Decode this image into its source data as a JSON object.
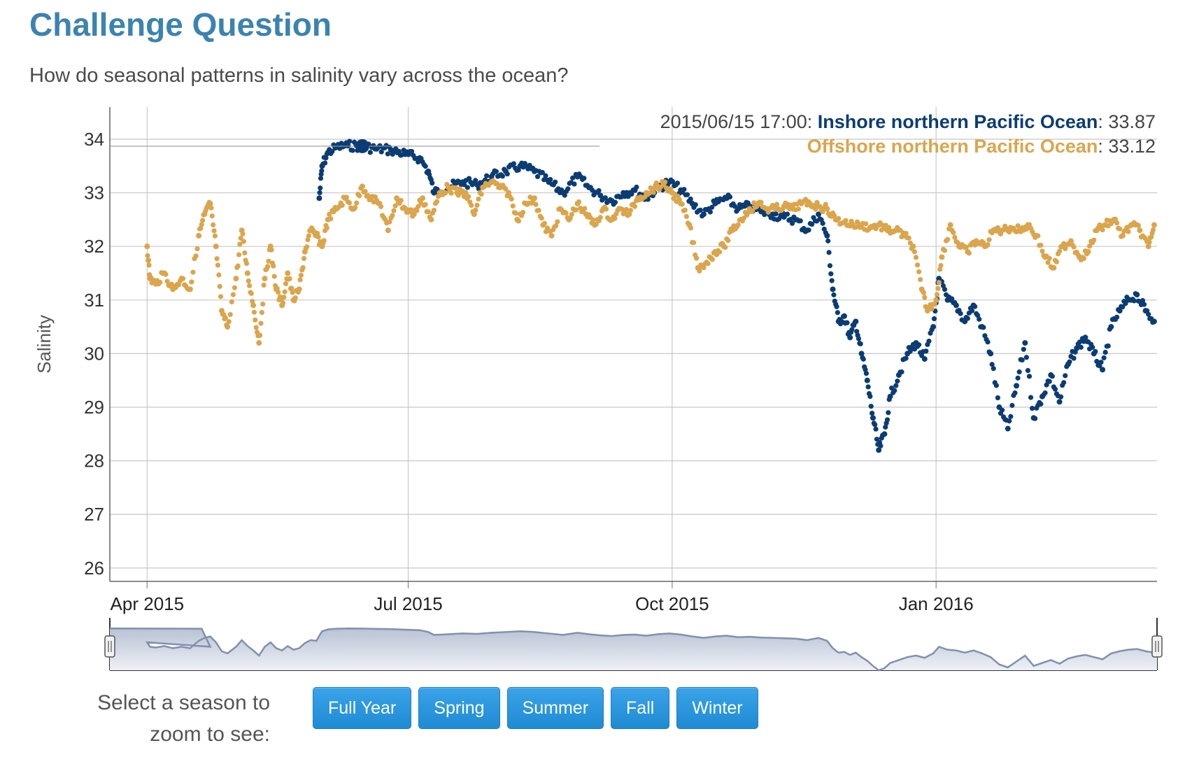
{
  "page": {
    "title": "Challenge Question",
    "subtitle": "How do seasonal patterns in salinity vary across the ocean?"
  },
  "controls": {
    "prompt_line1": "Select a season to",
    "prompt_line2": "zoom to see:",
    "buttons": [
      "Full Year",
      "Spring",
      "Summer",
      "Fall",
      "Winter"
    ]
  },
  "colors": {
    "inshore": "#0b3c74",
    "offshore": "#dba54c",
    "grid": "#c8c8c8",
    "button": "#2495dc",
    "title": "#3b83b0"
  },
  "chart_data": {
    "type": "scatter",
    "ylabel": "Salinity",
    "ylim": [
      25.75,
      34.6
    ],
    "yticks": [
      26,
      27,
      28,
      29,
      30,
      31,
      32,
      33,
      34
    ],
    "xlim": [
      "2015-03-19",
      "2016-03-18"
    ],
    "xticks": [
      {
        "date": "2015-04-01",
        "label": "Apr 2015"
      },
      {
        "date": "2015-07-01",
        "label": "Jul 2015"
      },
      {
        "date": "2015-10-01",
        "label": "Oct 2015"
      },
      {
        "date": "2016-01-01",
        "label": "Jan 2016"
      }
    ],
    "grid": true,
    "highlight": {
      "time": "2015/06/15 17:00",
      "series": [
        {
          "name": "Inshore northern Pacific Ocean",
          "value": "33.87"
        },
        {
          "name": "Offshore northern Pacific Ocean",
          "value": "33.12"
        }
      ]
    },
    "range_selector": true,
    "series": [
      {
        "name": "Inshore northern Pacific Ocean",
        "color": "#0b3c74",
        "points": [
          [
            "2015-05-31",
            32.9
          ],
          [
            "2015-06-01",
            33.5
          ],
          [
            "2015-06-03",
            33.75
          ],
          [
            "2015-06-06",
            33.85
          ],
          [
            "2015-06-10",
            33.88
          ],
          [
            "2015-06-15",
            33.87
          ],
          [
            "2015-06-20",
            33.82
          ],
          [
            "2015-06-25",
            33.8
          ],
          [
            "2015-06-30",
            33.72
          ],
          [
            "2015-07-05",
            33.65
          ],
          [
            "2015-07-08",
            33.4
          ],
          [
            "2015-07-10",
            33.0
          ],
          [
            "2015-07-15",
            33.1
          ],
          [
            "2015-07-20",
            33.2
          ],
          [
            "2015-07-25",
            33.15
          ],
          [
            "2015-07-30",
            33.3
          ],
          [
            "2015-08-04",
            33.4
          ],
          [
            "2015-08-09",
            33.5
          ],
          [
            "2015-08-14",
            33.4
          ],
          [
            "2015-08-19",
            33.2
          ],
          [
            "2015-08-24",
            33.0
          ],
          [
            "2015-08-29",
            33.3
          ],
          [
            "2015-09-02",
            33.1
          ],
          [
            "2015-09-06",
            32.95
          ],
          [
            "2015-09-10",
            32.85
          ],
          [
            "2015-09-14",
            33.0
          ],
          [
            "2015-09-18",
            33.05
          ],
          [
            "2015-09-22",
            32.9
          ],
          [
            "2015-09-26",
            33.1
          ],
          [
            "2015-09-30",
            33.2
          ],
          [
            "2015-10-04",
            33.05
          ],
          [
            "2015-10-08",
            32.8
          ],
          [
            "2015-10-12",
            32.6
          ],
          [
            "2015-10-16",
            32.8
          ],
          [
            "2015-10-20",
            32.9
          ],
          [
            "2015-10-24",
            32.7
          ],
          [
            "2015-10-28",
            32.75
          ],
          [
            "2015-11-01",
            32.65
          ],
          [
            "2015-11-05",
            32.6
          ],
          [
            "2015-11-09",
            32.55
          ],
          [
            "2015-11-13",
            32.5
          ],
          [
            "2015-11-17",
            32.3
          ],
          [
            "2015-11-21",
            32.6
          ],
          [
            "2015-11-24",
            32.2
          ],
          [
            "2015-11-26",
            31.2
          ],
          [
            "2015-11-28",
            30.6
          ],
          [
            "2015-11-30",
            30.7
          ],
          [
            "2015-12-02",
            30.3
          ],
          [
            "2015-12-04",
            30.6
          ],
          [
            "2015-12-06",
            30.0
          ],
          [
            "2015-12-08",
            29.5
          ],
          [
            "2015-12-10",
            28.8
          ],
          [
            "2015-12-12",
            28.2
          ],
          [
            "2015-12-14",
            28.5
          ],
          [
            "2015-12-16",
            29.2
          ],
          [
            "2015-12-19",
            29.6
          ],
          [
            "2015-12-22",
            30.0
          ],
          [
            "2015-12-25",
            30.2
          ],
          [
            "2015-12-28",
            29.9
          ],
          [
            "2015-12-31",
            30.5
          ],
          [
            "2016-01-02",
            31.4
          ],
          [
            "2016-01-05",
            31.0
          ],
          [
            "2016-01-08",
            30.9
          ],
          [
            "2016-01-11",
            30.6
          ],
          [
            "2016-01-14",
            30.9
          ],
          [
            "2016-01-17",
            30.5
          ],
          [
            "2016-01-20",
            30.0
          ],
          [
            "2016-01-23",
            29.0
          ],
          [
            "2016-01-26",
            28.6
          ],
          [
            "2016-01-29",
            29.4
          ],
          [
            "2016-02-01",
            30.2
          ],
          [
            "2016-02-04",
            28.8
          ],
          [
            "2016-02-07",
            29.2
          ],
          [
            "2016-02-10",
            29.6
          ],
          [
            "2016-02-13",
            29.1
          ],
          [
            "2016-02-16",
            29.8
          ],
          [
            "2016-02-19",
            30.1
          ],
          [
            "2016-02-22",
            30.3
          ],
          [
            "2016-02-25",
            30.0
          ],
          [
            "2016-02-28",
            29.7
          ],
          [
            "2016-03-02",
            30.5
          ],
          [
            "2016-03-05",
            30.8
          ],
          [
            "2016-03-08",
            31.0
          ],
          [
            "2016-03-11",
            31.1
          ],
          [
            "2016-03-14",
            30.8
          ],
          [
            "2016-03-17",
            30.6
          ]
        ]
      },
      {
        "name": "Offshore northern Pacific Ocean",
        "color": "#dba54c",
        "points": [
          [
            "2015-04-01",
            32.0
          ],
          [
            "2015-04-02",
            31.4
          ],
          [
            "2015-04-04",
            31.3
          ],
          [
            "2015-04-07",
            31.5
          ],
          [
            "2015-04-10",
            31.2
          ],
          [
            "2015-04-13",
            31.4
          ],
          [
            "2015-04-16",
            31.2
          ],
          [
            "2015-04-19",
            32.2
          ],
          [
            "2015-04-21",
            32.6
          ],
          [
            "2015-04-23",
            32.8
          ],
          [
            "2015-04-25",
            32.0
          ],
          [
            "2015-04-27",
            30.8
          ],
          [
            "2015-04-29",
            30.5
          ],
          [
            "2015-05-02",
            31.4
          ],
          [
            "2015-05-04",
            32.3
          ],
          [
            "2015-05-06",
            31.5
          ],
          [
            "2015-05-08",
            30.9
          ],
          [
            "2015-05-10",
            30.2
          ],
          [
            "2015-05-12",
            31.4
          ],
          [
            "2015-05-14",
            32.0
          ],
          [
            "2015-05-16",
            31.2
          ],
          [
            "2015-05-18",
            30.9
          ],
          [
            "2015-05-20",
            31.5
          ],
          [
            "2015-05-22",
            31.0
          ],
          [
            "2015-05-24",
            31.2
          ],
          [
            "2015-05-26",
            31.9
          ],
          [
            "2015-05-28",
            32.3
          ],
          [
            "2015-05-30",
            32.2
          ],
          [
            "2015-06-01",
            32.0
          ],
          [
            "2015-06-03",
            32.5
          ],
          [
            "2015-06-06",
            32.7
          ],
          [
            "2015-06-09",
            32.9
          ],
          [
            "2015-06-12",
            32.7
          ],
          [
            "2015-06-15",
            33.12
          ],
          [
            "2015-06-18",
            32.9
          ],
          [
            "2015-06-21",
            32.8
          ],
          [
            "2015-06-24",
            32.3
          ],
          [
            "2015-06-27",
            32.9
          ],
          [
            "2015-06-30",
            32.7
          ],
          [
            "2015-07-03",
            32.6
          ],
          [
            "2015-07-06",
            32.9
          ],
          [
            "2015-07-09",
            32.5
          ],
          [
            "2015-07-12",
            33.0
          ],
          [
            "2015-07-15",
            33.1
          ],
          [
            "2015-07-18",
            33.0
          ],
          [
            "2015-07-21",
            33.0
          ],
          [
            "2015-07-24",
            32.6
          ],
          [
            "2015-07-27",
            33.1
          ],
          [
            "2015-07-30",
            33.2
          ],
          [
            "2015-08-02",
            33.1
          ],
          [
            "2015-08-05",
            33.0
          ],
          [
            "2015-08-08",
            32.5
          ],
          [
            "2015-08-11",
            32.8
          ],
          [
            "2015-08-14",
            32.9
          ],
          [
            "2015-08-17",
            32.4
          ],
          [
            "2015-08-20",
            32.2
          ],
          [
            "2015-08-23",
            32.7
          ],
          [
            "2015-08-26",
            32.5
          ],
          [
            "2015-08-29",
            32.8
          ],
          [
            "2015-09-01",
            32.6
          ],
          [
            "2015-09-04",
            32.4
          ],
          [
            "2015-09-07",
            32.7
          ],
          [
            "2015-09-10",
            32.5
          ],
          [
            "2015-09-13",
            32.7
          ],
          [
            "2015-09-16",
            32.6
          ],
          [
            "2015-09-19",
            32.9
          ],
          [
            "2015-09-22",
            33.0
          ],
          [
            "2015-09-25",
            33.1
          ],
          [
            "2015-09-28",
            33.15
          ],
          [
            "2015-10-01",
            33.0
          ],
          [
            "2015-10-04",
            32.8
          ],
          [
            "2015-10-07",
            32.4
          ],
          [
            "2015-10-10",
            31.6
          ],
          [
            "2015-10-13",
            31.7
          ],
          [
            "2015-10-16",
            31.9
          ],
          [
            "2015-10-19",
            32.0
          ],
          [
            "2015-10-22",
            32.3
          ],
          [
            "2015-10-25",
            32.5
          ],
          [
            "2015-10-28",
            32.7
          ],
          [
            "2015-10-31",
            32.8
          ],
          [
            "2015-11-03",
            32.7
          ],
          [
            "2015-11-06",
            32.7
          ],
          [
            "2015-11-09",
            32.75
          ],
          [
            "2015-11-12",
            32.7
          ],
          [
            "2015-11-15",
            32.8
          ],
          [
            "2015-11-18",
            32.8
          ],
          [
            "2015-11-21",
            32.75
          ],
          [
            "2015-11-24",
            32.7
          ],
          [
            "2015-11-27",
            32.5
          ],
          [
            "2015-11-30",
            32.45
          ],
          [
            "2015-12-03",
            32.4
          ],
          [
            "2015-12-06",
            32.4
          ],
          [
            "2015-12-09",
            32.35
          ],
          [
            "2015-12-12",
            32.4
          ],
          [
            "2015-12-15",
            32.3
          ],
          [
            "2015-12-18",
            32.3
          ],
          [
            "2015-12-21",
            32.2
          ],
          [
            "2015-12-24",
            32.0
          ],
          [
            "2015-12-27",
            31.2
          ],
          [
            "2015-12-29",
            30.8
          ],
          [
            "2016-01-01",
            31.0
          ],
          [
            "2016-01-03",
            31.8
          ],
          [
            "2016-01-06",
            32.4
          ],
          [
            "2016-01-09",
            32.0
          ],
          [
            "2016-01-12",
            31.9
          ],
          [
            "2016-01-15",
            32.1
          ],
          [
            "2016-01-18",
            32.0
          ],
          [
            "2016-01-21",
            32.3
          ],
          [
            "2016-01-24",
            32.3
          ],
          [
            "2016-01-27",
            32.35
          ],
          [
            "2016-01-30",
            32.3
          ],
          [
            "2016-02-02",
            32.4
          ],
          [
            "2016-02-05",
            32.2
          ],
          [
            "2016-02-08",
            31.8
          ],
          [
            "2016-02-11",
            31.6
          ],
          [
            "2016-02-14",
            32.0
          ],
          [
            "2016-02-17",
            32.1
          ],
          [
            "2016-02-20",
            31.8
          ],
          [
            "2016-02-23",
            31.9
          ],
          [
            "2016-02-26",
            32.3
          ],
          [
            "2016-02-29",
            32.4
          ],
          [
            "2016-03-03",
            32.5
          ],
          [
            "2016-03-06",
            32.2
          ],
          [
            "2016-03-09",
            32.4
          ],
          [
            "2016-03-12",
            32.3
          ],
          [
            "2016-03-15",
            32.0
          ],
          [
            "2016-03-17",
            32.4
          ]
        ]
      }
    ]
  }
}
